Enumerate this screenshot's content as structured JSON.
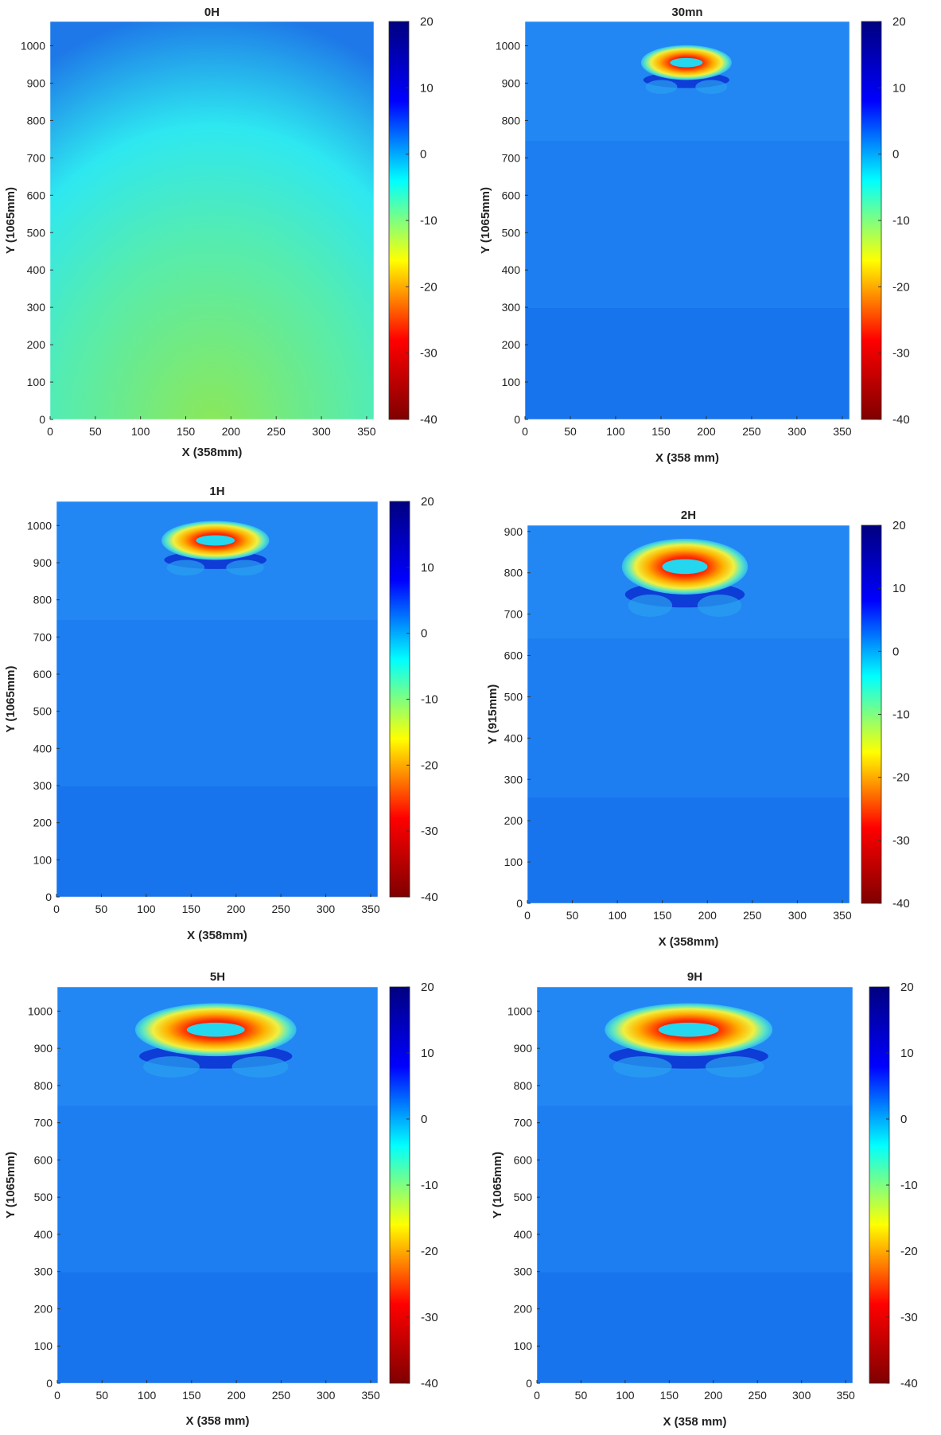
{
  "figure_name": "heatmap-grid",
  "colors": {
    "stops": [
      "#7f0000",
      "#ff0000",
      "#ffff00",
      "#00ffff",
      "#0000ff",
      "#00007f"
    ],
    "field_uniform": "#1d7ef2",
    "field_0H_top": "#1e78e8",
    "field_0H_mid": "#2ee8f0",
    "field_0H_bottom": "#8ce858",
    "ring_dark": "#0b2fd0",
    "core": "#24d6ee"
  },
  "chart_data": [
    {
      "type": "heatmap",
      "title": "0H",
      "xlabel": "X (358mm)",
      "ylabel": "Y (1065mm)",
      "xlim": [
        0,
        358
      ],
      "ylim": [
        0,
        1065
      ],
      "xticks": [
        0,
        50,
        100,
        150,
        200,
        250,
        300,
        350
      ],
      "yticks": [
        0,
        100,
        200,
        300,
        400,
        500,
        600,
        700,
        800,
        900,
        1000
      ],
      "colorbar": {
        "min": -40,
        "max": 20,
        "ticks": [
          20,
          10,
          0,
          -10,
          -20,
          -30,
          -40
        ]
      },
      "feature": null
    },
    {
      "type": "heatmap",
      "title": "30mn",
      "xlabel": "X (358 mm)",
      "ylabel": "Y (1065mm)",
      "xlim": [
        0,
        358
      ],
      "ylim": [
        0,
        1065
      ],
      "xticks": [
        0,
        50,
        100,
        150,
        200,
        250,
        300,
        350
      ],
      "yticks": [
        0,
        100,
        200,
        300,
        400,
        500,
        600,
        700,
        800,
        900,
        1000
      ],
      "colorbar": {
        "min": -40,
        "max": 20,
        "ticks": [
          20,
          10,
          0,
          -10,
          -20,
          -30,
          -40
        ]
      },
      "feature": {
        "center_x": 178,
        "center_y": 955,
        "rx": 50,
        "ry": 62,
        "min_value": -17
      }
    },
    {
      "type": "heatmap",
      "title": "1H",
      "xlabel": "X (358mm)",
      "ylabel": "Y (1065mm)",
      "xlim": [
        0,
        358
      ],
      "ylim": [
        0,
        1065
      ],
      "xticks": [
        0,
        50,
        100,
        150,
        200,
        250,
        300,
        350
      ],
      "yticks": [
        0,
        100,
        200,
        300,
        400,
        500,
        600,
        700,
        800,
        900,
        1000
      ],
      "colorbar": {
        "min": -40,
        "max": 20,
        "ticks": [
          20,
          10,
          0,
          -10,
          -20,
          -30,
          -40
        ]
      },
      "feature": {
        "center_x": 177,
        "center_y": 960,
        "rx": 60,
        "ry": 70,
        "min_value": -25
      }
    },
    {
      "type": "heatmap",
      "title": "2H",
      "xlabel": "X (358mm)",
      "ylabel": "Y (915mm)",
      "xlim": [
        0,
        358
      ],
      "ylim": [
        0,
        915
      ],
      "xticks": [
        0,
        50,
        100,
        150,
        200,
        250,
        300,
        350
      ],
      "yticks": [
        0,
        100,
        200,
        300,
        400,
        500,
        600,
        700,
        800,
        900
      ],
      "colorbar": {
        "min": -40,
        "max": 20,
        "ticks": [
          20,
          10,
          0,
          -10,
          -20,
          -30,
          -40
        ]
      },
      "feature": {
        "center_x": 175,
        "center_y": 815,
        "rx": 70,
        "ry": 90,
        "min_value": -30
      }
    },
    {
      "type": "heatmap",
      "title": "5H",
      "xlabel": "X (358 mm)",
      "ylabel": "Y (1065mm)",
      "xlim": [
        0,
        358
      ],
      "ylim": [
        0,
        1065
      ],
      "xticks": [
        0,
        50,
        100,
        150,
        200,
        250,
        300,
        350
      ],
      "yticks": [
        0,
        100,
        200,
        300,
        400,
        500,
        600,
        700,
        800,
        900,
        1000
      ],
      "colorbar": {
        "min": -40,
        "max": 20,
        "ticks": [
          20,
          10,
          0,
          -10,
          -20,
          -30,
          -40
        ]
      },
      "feature": {
        "center_x": 177,
        "center_y": 950,
        "rx": 90,
        "ry": 95,
        "min_value": -35
      }
    },
    {
      "type": "heatmap",
      "title": "9H",
      "xlabel": "X (358 mm)",
      "ylabel": "Y (1065mm)",
      "xlim": [
        0,
        358
      ],
      "ylim": [
        0,
        1065
      ],
      "xticks": [
        0,
        50,
        100,
        150,
        200,
        250,
        300,
        350
      ],
      "yticks": [
        0,
        100,
        200,
        300,
        400,
        500,
        600,
        700,
        800,
        900,
        1000
      ],
      "colorbar": {
        "min": -40,
        "max": 20,
        "ticks": [
          20,
          10,
          0,
          -10,
          -20,
          -30,
          -40
        ]
      },
      "feature": {
        "center_x": 172,
        "center_y": 950,
        "rx": 95,
        "ry": 95,
        "min_value": -37
      }
    }
  ]
}
